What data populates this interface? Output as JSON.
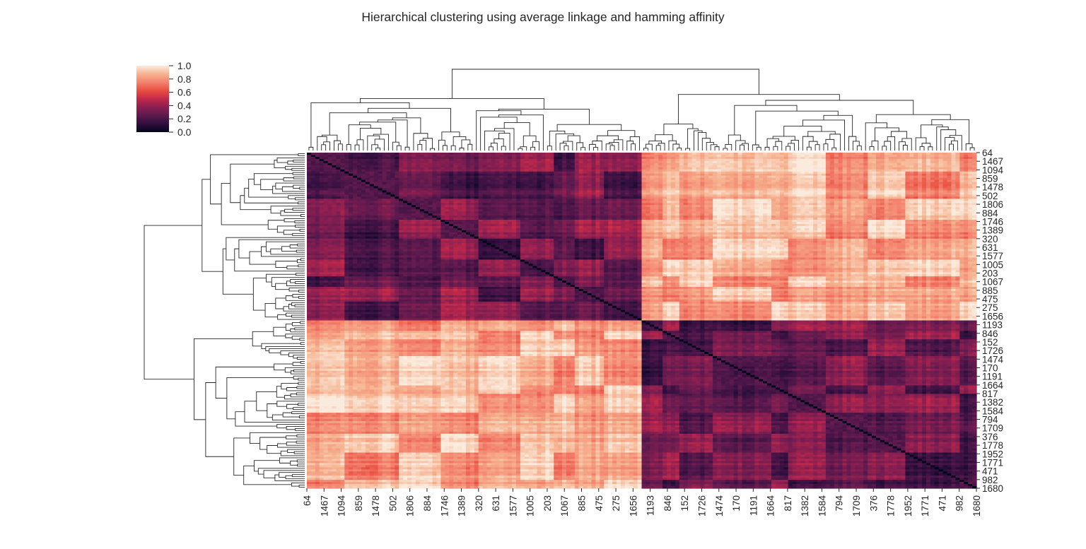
{
  "chart_data": {
    "type": "heatmap",
    "title": "Hierarchical clustering using average linkage and hamming affinity",
    "xlabel": "",
    "ylabel": "",
    "tick_labels": [
      "64",
      "1467",
      "1094",
      "859",
      "1478",
      "502",
      "1806",
      "884",
      "1746",
      "1389",
      "320",
      "631",
      "1577",
      "1005",
      "203",
      "1067",
      "885",
      "475",
      "275",
      "1656",
      "1193",
      "846",
      "152",
      "1726",
      "1474",
      "170",
      "1191",
      "1664",
      "817",
      "1382",
      "1584",
      "794",
      "1709",
      "376",
      "1778",
      "1952",
      "1771",
      "471",
      "982",
      "1680"
    ],
    "cluster_split_label": "1193",
    "clusters": [
      {
        "first_label": "64",
        "last_label": "1656",
        "within_level": 0.3,
        "between_level": 0.85
      },
      {
        "first_label": "1193",
        "last_label": "1680",
        "within_level": 0.3,
        "between_level": 0.85
      }
    ],
    "diagonal_value": 0.0,
    "vmin": 0.0,
    "vmax": 1.0,
    "colorbar": {
      "ticks": [
        "0.0",
        "0.2",
        "0.4",
        "0.6",
        "0.8",
        "1.0"
      ],
      "tick_values": [
        0.0,
        0.2,
        0.4,
        0.6,
        0.8,
        1.0
      ],
      "colormap": "rocket",
      "stops": [
        "#03051a",
        "#2f0f3e",
        "#5c1a4e",
        "#8a1f51",
        "#c3294a",
        "#e84d3d",
        "#f3826f",
        "#f6b28f",
        "#faebdd"
      ]
    },
    "dendrogram_color": "#262626",
    "grid": false,
    "legend": "colorbar top-left"
  }
}
